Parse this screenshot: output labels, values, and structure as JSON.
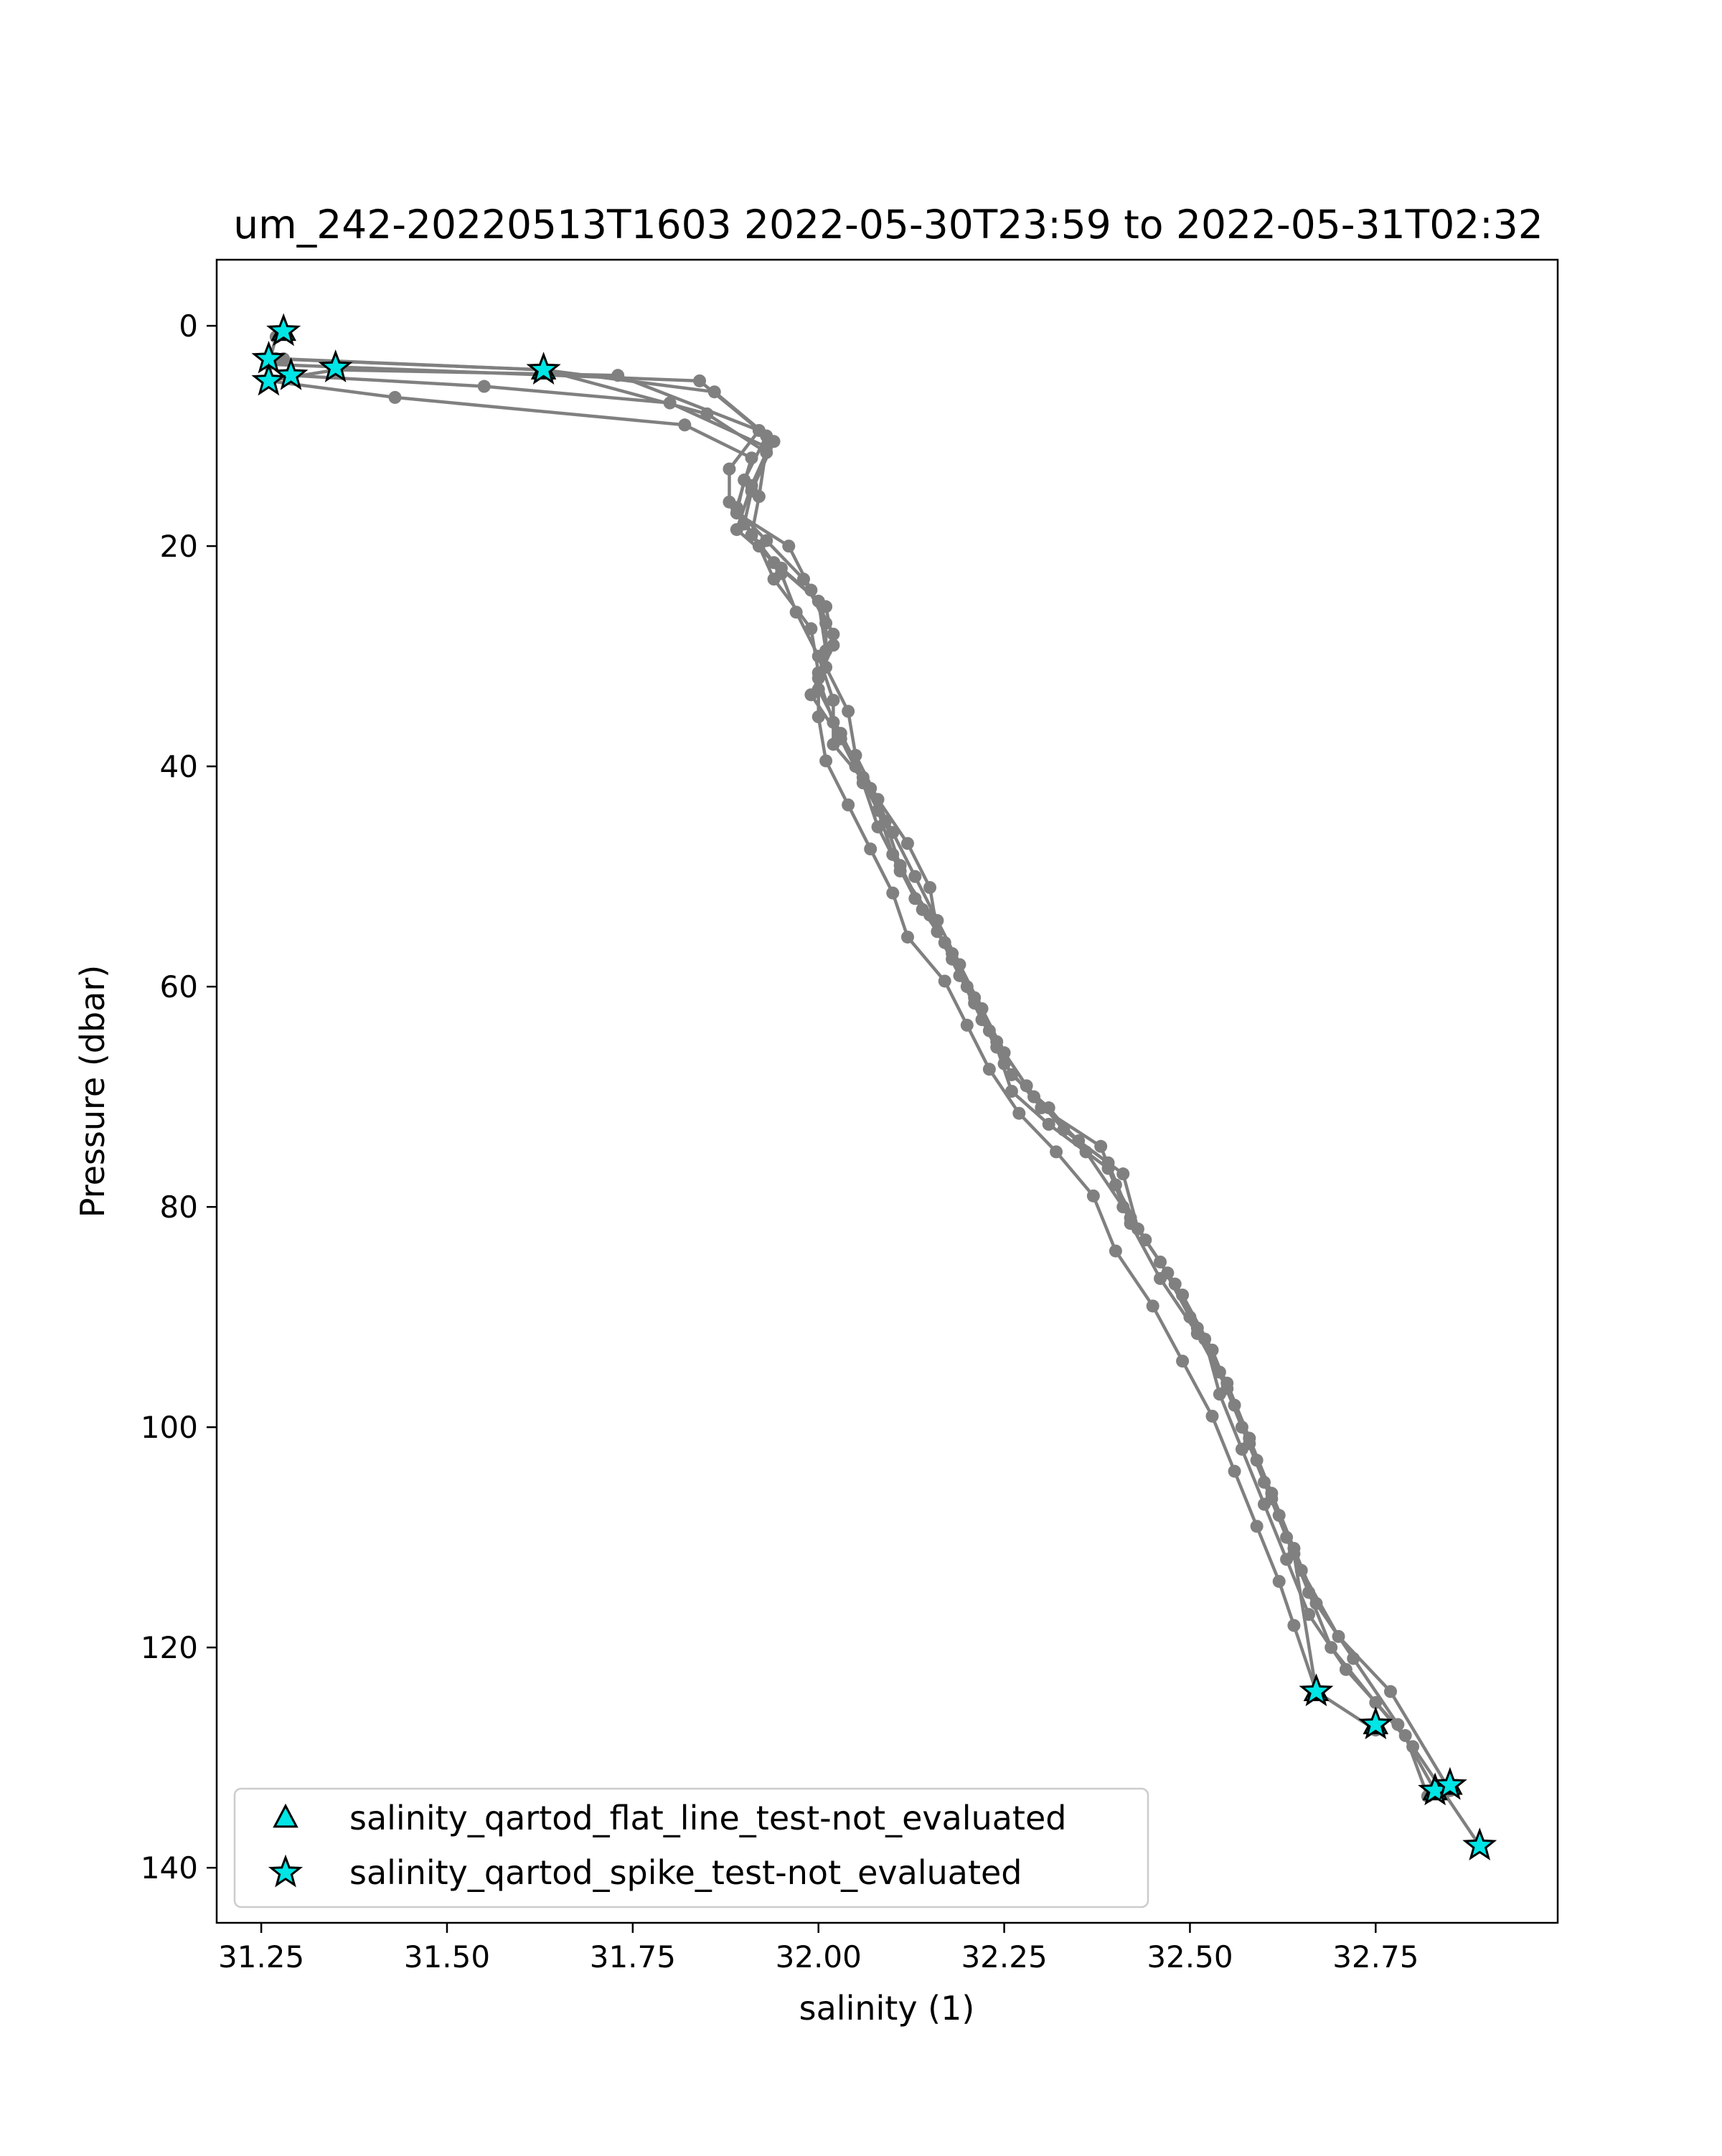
{
  "chart_data": {
    "type": "line",
    "title": "um_242-20220513T1603 2022-05-30T23:59 to 2022-05-31T02:32",
    "xlabel": "salinity (1)",
    "ylabel": "Pressure (dbar)",
    "xlim": [
      31.19,
      32.995
    ],
    "ylim": [
      145,
      -6
    ],
    "y_inverted": true,
    "x_ticks": [
      31.25,
      31.5,
      31.75,
      32.0,
      32.25,
      32.5,
      32.75
    ],
    "x_tick_labels": [
      "31.25",
      "31.50",
      "31.75",
      "32.00",
      "32.25",
      "32.50",
      "32.75"
    ],
    "y_ticks": [
      0,
      20,
      40,
      60,
      80,
      100,
      120,
      140
    ],
    "y_tick_labels": [
      "0",
      "20",
      "40",
      "60",
      "80",
      "100",
      "120",
      "140"
    ],
    "grid": false,
    "legend_position": "lower-left",
    "colors": {
      "profile_line": "#808080",
      "flag_fill": "#00e5e5",
      "flag_edge": "#000000"
    },
    "series": [
      {
        "x": [
          31.27,
          31.26,
          31.84,
          31.93,
          31.9,
          31.89,
          31.96,
          31.99,
          32.02,
          32.0,
          32.02,
          32.05,
          32.08,
          32.1,
          32.13,
          32.17,
          32.2,
          32.23,
          32.26,
          32.31,
          32.36,
          32.41,
          32.46,
          32.5,
          32.54,
          32.57,
          32.6,
          32.63,
          32.66,
          32.69,
          32.75,
          32.8,
          32.84,
          32.89
        ],
        "y": [
          1.0,
          3.5,
          5.0,
          10.0,
          14.0,
          17.0,
          20.0,
          24.0,
          28.0,
          32.0,
          36.0,
          40.0,
          44.0,
          48.0,
          52.0,
          56.0,
          60.0,
          64.0,
          68.0,
          71.0,
          75.0,
          80.0,
          85.0,
          90.0,
          95.0,
          100.0,
          105.0,
          110.0,
          115.0,
          120.0,
          125.0,
          129.0,
          133.0,
          138.0
        ]
      },
      {
        "x": [
          31.28,
          31.63,
          31.86,
          31.94,
          31.91,
          31.9,
          31.94,
          32.0,
          32.01,
          32.0,
          32.03,
          32.06,
          32.09,
          32.11,
          32.14,
          32.18,
          32.21,
          32.24,
          32.28,
          32.33,
          32.39,
          32.42,
          32.47,
          32.51,
          32.55,
          32.58,
          32.61,
          32.64,
          32.67,
          32.72,
          32.78,
          32.83
        ],
        "y": [
          3.0,
          4.0,
          6.0,
          10.5,
          15.0,
          18.0,
          21.5,
          25.0,
          29.5,
          33.0,
          37.0,
          41.0,
          45.0,
          49.0,
          53.0,
          57.0,
          61.0,
          65.0,
          69.0,
          73.0,
          76.0,
          81.0,
          86.0,
          91.0,
          96.0,
          101.0,
          106.0,
          111.0,
          116.0,
          121.0,
          127.0,
          133.0
        ]
      },
      {
        "x": [
          31.26,
          31.35,
          31.73,
          31.92,
          31.88,
          31.88,
          31.93,
          31.98,
          32.01,
          32.01,
          32.04,
          32.05,
          32.08,
          32.12,
          32.15,
          32.16,
          32.19,
          32.22,
          32.25,
          32.3,
          32.38,
          32.4,
          32.44,
          32.49,
          32.53,
          32.56,
          32.59,
          32.62,
          32.65,
          32.7,
          32.77,
          32.85
        ],
        "y": [
          5.0,
          4.0,
          4.5,
          9.5,
          13.0,
          16.0,
          19.5,
          23.0,
          27.0,
          31.0,
          35.0,
          39.0,
          43.0,
          47.0,
          51.0,
          55.0,
          59.0,
          63.0,
          67.0,
          71.0,
          74.5,
          78.0,
          83.0,
          88.0,
          93.0,
          98.0,
          103.0,
          108.0,
          113.0,
          119.0,
          124.0,
          133.0
        ]
      },
      {
        "x": [
          31.29,
          31.55,
          31.8,
          31.93,
          31.92,
          31.91,
          31.95,
          31.97,
          32.0,
          32.02,
          32.02,
          32.07,
          32.1,
          32.13,
          32.16,
          32.19,
          32.22,
          32.25,
          32.29,
          32.35,
          32.41,
          32.43,
          32.48,
          32.52,
          32.54,
          32.57,
          32.6,
          32.63,
          32.66,
          32.71,
          32.79,
          32.82
        ],
        "y": [
          4.5,
          5.5,
          7.0,
          11.0,
          15.5,
          19.0,
          22.5,
          26.0,
          30.0,
          34.0,
          38.0,
          42.0,
          46.0,
          50.0,
          54.0,
          58.0,
          62.0,
          66.0,
          70.0,
          74.0,
          77.0,
          82.0,
          87.0,
          92.0,
          97.0,
          102.0,
          107.0,
          112.0,
          117.0,
          122.0,
          128.0,
          133.5
        ]
      },
      {
        "x": [
          31.26,
          31.43,
          31.82,
          31.91,
          31.89,
          31.92,
          31.94,
          31.99,
          32.0,
          32.0,
          32.01,
          32.04,
          32.07,
          32.1,
          32.12,
          32.17,
          32.2,
          32.23,
          32.27,
          32.32,
          32.37,
          32.4,
          32.45,
          32.49,
          32.53,
          32.56,
          32.59,
          32.62,
          32.64,
          32.67,
          32.75
        ],
        "y": [
          5.0,
          6.5,
          9.0,
          12.0,
          16.5,
          20.0,
          23.0,
          27.5,
          31.5,
          35.5,
          39.5,
          43.5,
          47.5,
          51.5,
          55.5,
          59.5,
          63.5,
          67.5,
          71.5,
          75.0,
          79.0,
          84.0,
          89.0,
          94.0,
          99.0,
          104.0,
          109.0,
          114.0,
          118.0,
          124.0,
          127.5
        ]
      },
      {
        "x": [
          31.27,
          31.63,
          31.85,
          31.93,
          31.91,
          31.89,
          31.95,
          32.01,
          32.02,
          31.99,
          32.03,
          32.06,
          32.08,
          32.11,
          32.15,
          32.18,
          32.21,
          32.24,
          32.26,
          32.31,
          32.39,
          32.42,
          32.46,
          32.51,
          32.55,
          32.58,
          32.61,
          32.64,
          32.67
        ],
        "y": [
          3.0,
          4.0,
          8.0,
          11.5,
          14.5,
          18.5,
          22.0,
          25.5,
          29.0,
          33.5,
          37.5,
          41.5,
          45.5,
          49.5,
          53.5,
          57.5,
          61.5,
          65.5,
          69.5,
          72.5,
          76.5,
          81.5,
          86.5,
          91.5,
          96.5,
          101.5,
          106.5,
          111.5,
          124.0
        ]
      }
    ],
    "flag_markers": [
      {
        "label": "salinity_qartod_flat_line_test-not_evaluated",
        "marker": "triangle",
        "x": [
          31.28,
          31.63,
          32.67,
          32.75,
          32.83,
          32.85
        ],
        "y": [
          0.5,
          4.0,
          124.0,
          127.0,
          133.0,
          132.5
        ]
      },
      {
        "label": "salinity_qartod_spike_test-not_evaluated",
        "marker": "star",
        "x": [
          31.28,
          31.26,
          31.29,
          31.35,
          31.63,
          31.26,
          32.67,
          32.75,
          32.83,
          32.85,
          32.89
        ],
        "y": [
          0.5,
          3.0,
          4.5,
          3.8,
          4.0,
          5.0,
          124.0,
          127.0,
          133.0,
          132.5,
          138.0
        ]
      }
    ],
    "legend": [
      {
        "label": "salinity_qartod_flat_line_test-not_evaluated",
        "marker": "triangle"
      },
      {
        "label": "salinity_qartod_spike_test-not_evaluated",
        "marker": "star"
      }
    ]
  }
}
